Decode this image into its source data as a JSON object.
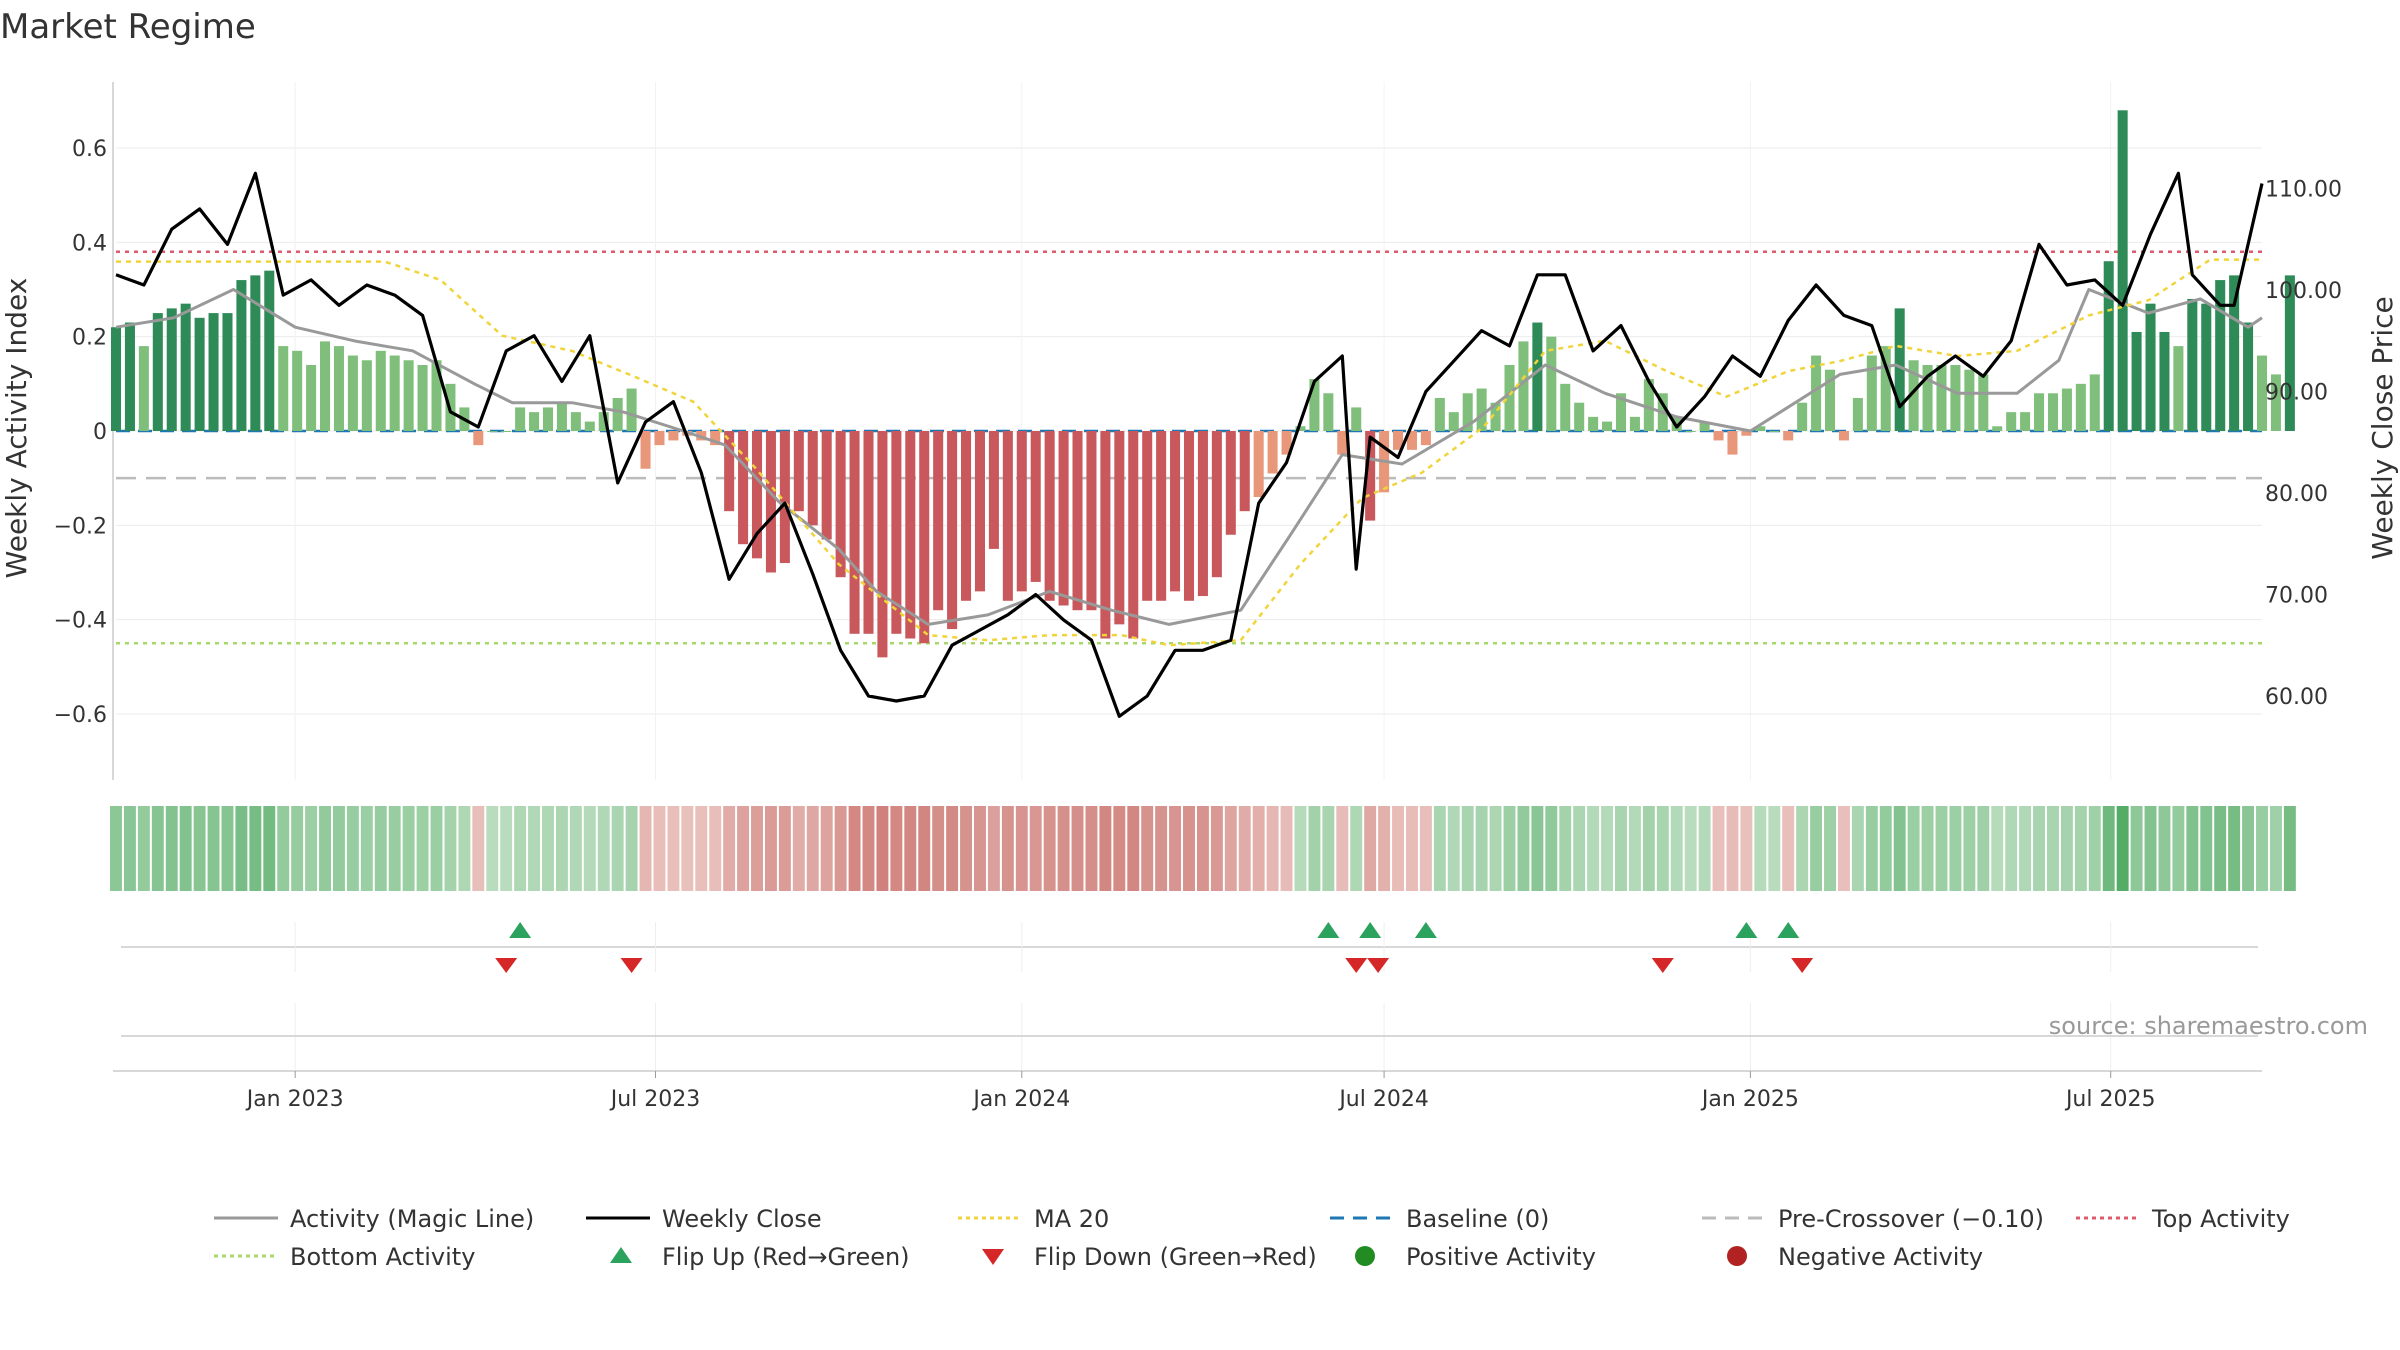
{
  "title": "Market Regime",
  "source_text": "source: sharemaestro.com",
  "chart_data": {
    "type": "bar",
    "title": "Market Regime",
    "ylabel_left": "Weekly Activity Index",
    "ylabel_right": "Weekly Close Price",
    "ylim_left": [
      -0.74,
      0.74
    ],
    "ylim_right": [
      51.72,
      120.5
    ],
    "yticks_left": [
      {
        "value": 0.6,
        "label": "0.6"
      },
      {
        "value": 0.4,
        "label": "0.4"
      },
      {
        "value": 0.2,
        "label": "0.2"
      },
      {
        "value": 0,
        "label": "0"
      },
      {
        "value": -0.2,
        "label": "−0.2"
      },
      {
        "value": -0.4,
        "label": "−0.4"
      },
      {
        "value": -0.6,
        "label": "−0.6"
      }
    ],
    "yticks_right": [
      {
        "value": 110,
        "label": "110.00"
      },
      {
        "value": 100,
        "label": "100.00"
      },
      {
        "value": 90,
        "label": "90.00"
      },
      {
        "value": 80,
        "label": "80.00"
      },
      {
        "value": 70,
        "label": "70.00"
      },
      {
        "value": 60,
        "label": "60.00"
      }
    ],
    "x_start": "2022-10-03",
    "x_end": "2025-09-15",
    "xticks": [
      {
        "date": "2023-01-01",
        "label": "Jan 2023"
      },
      {
        "date": "2023-07-01",
        "label": "Jul 2023"
      },
      {
        "date": "2024-01-01",
        "label": "Jan 2024"
      },
      {
        "date": "2024-07-01",
        "label": "Jul 2024"
      },
      {
        "date": "2025-01-01",
        "label": "Jan 2025"
      },
      {
        "date": "2025-07-01",
        "label": "Jul 2025"
      }
    ],
    "reference_lines": {
      "baseline": 0,
      "pre_crossover": -0.1,
      "top_activity": 0.38,
      "bottom_activity": -0.45
    },
    "colors": {
      "bar_positive_strong": "#2e8b57",
      "bar_positive_weak": "#7fbf7b",
      "bar_negative_strong": "#c8585c",
      "bar_negative_weak": "#e8977a",
      "magic_line": "#999999",
      "weekly_close": "#000000",
      "ma20": "#f0d43a",
      "baseline": "#1f77b4",
      "pre_crossover": "#bbbbbb",
      "top_activity": "#e05a6e",
      "bottom_activity": "#a6d96a",
      "flip_up": "#2ca25f",
      "flip_down": "#d62728",
      "positive_activity": "#228b22",
      "negative_activity": "#b22222"
    },
    "series": [
      {
        "name": "Activity (Magic Line)",
        "type": "line",
        "points": [
          [
            "2022-10-03",
            0.22
          ],
          [
            "2022-11-01",
            0.24
          ],
          [
            "2022-12-01",
            0.3
          ],
          [
            "2023-01-01",
            0.22
          ],
          [
            "2023-02-01",
            0.19
          ],
          [
            "2023-03-01",
            0.17
          ],
          [
            "2023-04-01",
            0.1
          ],
          [
            "2023-04-20",
            0.06
          ],
          [
            "2023-05-20",
            0.06
          ],
          [
            "2023-06-15",
            0.04
          ],
          [
            "2023-07-15",
            0.0
          ],
          [
            "2023-08-05",
            -0.03
          ],
          [
            "2023-09-01",
            -0.15
          ],
          [
            "2023-10-01",
            -0.25
          ],
          [
            "2023-10-20",
            -0.34
          ],
          [
            "2023-11-15",
            -0.41
          ],
          [
            "2023-12-15",
            -0.39
          ],
          [
            "2024-01-15",
            -0.34
          ],
          [
            "2024-02-15",
            -0.38
          ],
          [
            "2024-03-15",
            -0.41
          ],
          [
            "2024-04-20",
            -0.38
          ],
          [
            "2024-05-15",
            -0.22
          ],
          [
            "2024-06-10",
            -0.05
          ],
          [
            "2024-07-10",
            -0.07
          ],
          [
            "2024-08-15",
            0.02
          ],
          [
            "2024-09-20",
            0.14
          ],
          [
            "2024-10-20",
            0.08
          ],
          [
            "2024-11-25",
            0.03
          ],
          [
            "2025-01-01",
            0.0
          ],
          [
            "2025-02-15",
            0.12
          ],
          [
            "2025-03-15",
            0.14
          ],
          [
            "2025-04-15",
            0.08
          ],
          [
            "2025-05-15",
            0.08
          ],
          [
            "2025-06-05",
            0.15
          ],
          [
            "2025-06-20",
            0.3
          ],
          [
            "2025-07-20",
            0.25
          ],
          [
            "2025-08-15",
            0.28
          ],
          [
            "2025-09-08",
            0.22
          ],
          [
            "2025-09-15",
            0.24
          ]
        ]
      },
      {
        "name": "Weekly Close",
        "type": "line",
        "axis": "right",
        "points": [
          [
            "2022-10-03",
            101.5
          ],
          [
            "2022-10-17",
            100.5
          ],
          [
            "2022-10-31",
            106
          ],
          [
            "2022-11-14",
            108
          ],
          [
            "2022-11-28",
            104.5
          ],
          [
            "2022-12-12",
            111.5
          ],
          [
            "2022-12-26",
            99.5
          ],
          [
            "2023-01-09",
            101
          ],
          [
            "2023-01-23",
            98.5
          ],
          [
            "2023-02-06",
            100.5
          ],
          [
            "2023-02-20",
            99.5
          ],
          [
            "2023-03-06",
            97.5
          ],
          [
            "2023-03-20",
            88
          ],
          [
            "2023-04-03",
            86.5
          ],
          [
            "2023-04-17",
            94
          ],
          [
            "2023-05-01",
            95.5
          ],
          [
            "2023-05-15",
            91
          ],
          [
            "2023-05-29",
            95.5
          ],
          [
            "2023-06-12",
            81
          ],
          [
            "2023-06-26",
            87
          ],
          [
            "2023-07-10",
            89
          ],
          [
            "2023-07-24",
            82
          ],
          [
            "2023-08-07",
            71.5
          ],
          [
            "2023-08-21",
            76
          ],
          [
            "2023-09-04",
            79
          ],
          [
            "2023-09-18",
            72
          ],
          [
            "2023-10-02",
            64.5
          ],
          [
            "2023-10-16",
            60
          ],
          [
            "2023-10-30",
            59.5
          ],
          [
            "2023-11-13",
            60
          ],
          [
            "2023-11-27",
            65
          ],
          [
            "2023-12-11",
            66.5
          ],
          [
            "2023-12-25",
            68
          ],
          [
            "2024-01-08",
            70
          ],
          [
            "2024-01-22",
            67.5
          ],
          [
            "2024-02-05",
            65.5
          ],
          [
            "2024-02-19",
            58
          ],
          [
            "2024-03-04",
            60
          ],
          [
            "2024-03-18",
            64.5
          ],
          [
            "2024-04-01",
            64.5
          ],
          [
            "2024-04-15",
            65.5
          ],
          [
            "2024-04-29",
            79
          ],
          [
            "2024-05-13",
            83
          ],
          [
            "2024-05-27",
            91
          ],
          [
            "2024-06-10",
            93.5
          ],
          [
            "2024-06-17",
            72.5
          ],
          [
            "2024-06-24",
            85.5
          ],
          [
            "2024-07-08",
            83.5
          ],
          [
            "2024-07-22",
            90
          ],
          [
            "2024-08-05",
            93
          ],
          [
            "2024-08-19",
            96
          ],
          [
            "2024-09-02",
            94.5
          ],
          [
            "2024-09-16",
            101.5
          ],
          [
            "2024-09-30",
            101.5
          ],
          [
            "2024-10-14",
            94
          ],
          [
            "2024-10-28",
            96.5
          ],
          [
            "2024-11-11",
            91
          ],
          [
            "2024-11-25",
            86.5
          ],
          [
            "2024-12-09",
            89.5
          ],
          [
            "2024-12-23",
            93.5
          ],
          [
            "2025-01-06",
            91.5
          ],
          [
            "2025-01-20",
            97
          ],
          [
            "2025-02-03",
            100.5
          ],
          [
            "2025-02-17",
            97.5
          ],
          [
            "2025-03-03",
            96.5
          ],
          [
            "2025-03-17",
            88.5
          ],
          [
            "2025-03-31",
            91.5
          ],
          [
            "2025-04-14",
            93.5
          ],
          [
            "2025-04-28",
            91.5
          ],
          [
            "2025-05-12",
            95
          ],
          [
            "2025-05-26",
            104.5
          ],
          [
            "2025-06-09",
            100.5
          ],
          [
            "2025-06-23",
            101
          ],
          [
            "2025-07-07",
            98.5
          ],
          [
            "2025-07-21",
            105.5
          ],
          [
            "2025-08-04",
            111.5
          ],
          [
            "2025-08-11",
            101.5
          ],
          [
            "2025-08-25",
            98.5
          ],
          [
            "2025-09-01",
            98.5
          ],
          [
            "2025-09-15",
            110.5
          ]
        ]
      },
      {
        "name": "MA 20",
        "type": "line",
        "axis": "right",
        "points": [
          [
            "2022-10-03",
            102.8
          ],
          [
            "2023-02-15",
            102.8
          ],
          [
            "2023-03-15",
            101
          ],
          [
            "2023-04-15",
            95.5
          ],
          [
            "2023-05-20",
            94
          ],
          [
            "2023-06-20",
            91.5
          ],
          [
            "2023-07-20",
            89
          ],
          [
            "2023-08-20",
            82.5
          ],
          [
            "2023-10-01",
            73
          ],
          [
            "2023-11-15",
            66
          ],
          [
            "2023-12-15",
            65.5
          ],
          [
            "2024-01-15",
            66
          ],
          [
            "2024-02-20",
            66
          ],
          [
            "2024-03-15",
            65
          ],
          [
            "2024-04-20",
            65.5
          ],
          [
            "2024-05-20",
            73
          ],
          [
            "2024-06-20",
            79.5
          ],
          [
            "2024-07-20",
            82
          ],
          [
            "2024-08-20",
            86.5
          ],
          [
            "2024-09-20",
            94
          ],
          [
            "2024-10-20",
            95
          ],
          [
            "2024-11-20",
            92
          ],
          [
            "2024-12-20",
            89.5
          ],
          [
            "2025-01-20",
            92
          ],
          [
            "2025-02-15",
            93
          ],
          [
            "2025-03-15",
            94.5
          ],
          [
            "2025-04-15",
            93.5
          ],
          [
            "2025-05-15",
            94
          ],
          [
            "2025-06-20",
            97.5
          ],
          [
            "2025-07-20",
            99
          ],
          [
            "2025-08-20",
            103
          ],
          [
            "2025-09-15",
            103
          ]
        ]
      }
    ],
    "bars": {
      "name": "Weekly Activity",
      "start": "2022-10-03",
      "interval_days": 7,
      "values": [
        0.22,
        0.23,
        0.18,
        0.25,
        0.26,
        0.27,
        0.24,
        0.25,
        0.25,
        0.32,
        0.33,
        0.34,
        0.18,
        0.17,
        0.14,
        0.19,
        0.18,
        0.16,
        0.15,
        0.17,
        0.16,
        0.15,
        0.14,
        0.15,
        0.1,
        0.05,
        -0.03,
        0.0,
        0.0,
        0.05,
        0.04,
        0.05,
        0.06,
        0.04,
        0.02,
        0.04,
        0.07,
        0.09,
        -0.08,
        -0.03,
        -0.02,
        -0.01,
        -0.02,
        -0.03,
        -0.17,
        -0.24,
        -0.27,
        -0.3,
        -0.28,
        -0.17,
        -0.2,
        -0.23,
        -0.31,
        -0.43,
        -0.43,
        -0.48,
        -0.43,
        -0.44,
        -0.45,
        -0.38,
        -0.42,
        -0.36,
        -0.34,
        -0.25,
        -0.36,
        -0.34,
        -0.32,
        -0.36,
        -0.37,
        -0.38,
        -0.38,
        -0.44,
        -0.41,
        -0.44,
        -0.36,
        -0.36,
        -0.34,
        -0.36,
        -0.35,
        -0.31,
        -0.22,
        -0.17,
        -0.14,
        -0.09,
        -0.05,
        0.01,
        0.11,
        0.08,
        -0.05,
        0.05,
        -0.19,
        -0.13,
        -0.04,
        -0.04,
        -0.03,
        0.07,
        0.04,
        0.08,
        0.09,
        0.06,
        0.14,
        0.19,
        0.23,
        0.2,
        0.1,
        0.06,
        0.03,
        0.02,
        0.08,
        0.03,
        0.11,
        0.08,
        0.03,
        0.0,
        0.02,
        -0.02,
        -0.05,
        -0.01,
        0.01,
        0.0,
        -0.02,
        0.06,
        0.16,
        0.13,
        -0.02,
        0.07,
        0.16,
        0.18,
        0.26,
        0.15,
        0.14,
        0.14,
        0.14,
        0.13,
        0.12,
        0.01,
        0.04,
        0.04,
        0.08,
        0.08,
        0.09,
        0.1,
        0.12,
        0.36,
        0.68,
        0.21,
        0.27,
        0.21,
        0.18,
        0.28,
        0.27,
        0.32,
        0.33,
        0.23,
        0.16,
        0.12,
        0.33
      ]
    },
    "flip_up_dates": [
      "2023-04-24",
      "2024-06-03",
      "2024-06-24",
      "2024-07-22",
      "2024-12-30",
      "2025-01-20"
    ],
    "flip_down_dates": [
      "2023-04-17",
      "2023-06-19",
      "2024-06-17",
      "2024-06-28",
      "2024-11-18",
      "2025-01-27"
    ],
    "legend": {
      "placement": "bottom",
      "entries": [
        {
          "label": "Activity (Magic Line)",
          "symbol": "line-solid",
          "color": "#999999"
        },
        {
          "label": "Weekly Close",
          "symbol": "line-solid",
          "color": "#000000"
        },
        {
          "label": "MA 20",
          "symbol": "line-dotted",
          "color": "#f0d43a"
        },
        {
          "label": "Baseline (0)",
          "symbol": "line-dashed",
          "color": "#1f77b4"
        },
        {
          "label": "Pre-Crossover (−0.10)",
          "symbol": "line-dashed",
          "color": "#bbbbbb"
        },
        {
          "label": "Top Activity",
          "symbol": "line-dotted",
          "color": "#e05a6e"
        },
        {
          "label": "Bottom Activity",
          "symbol": "line-dotted",
          "color": "#a6d96a"
        },
        {
          "label": "Flip Up (Red→Green)",
          "symbol": "triangle-up",
          "color": "#2ca25f"
        },
        {
          "label": "Flip Down (Green→Red)",
          "symbol": "triangle-down",
          "color": "#d62728"
        },
        {
          "label": "Positive Activity",
          "symbol": "circle",
          "color": "#228b22"
        },
        {
          "label": "Negative Activity",
          "symbol": "circle",
          "color": "#b22222"
        }
      ]
    }
  }
}
